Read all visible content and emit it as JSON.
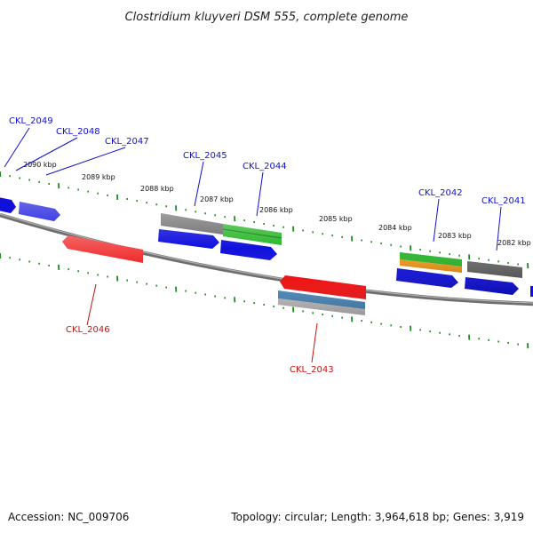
{
  "title": "Clostridium kluyveri DSM 555, complete genome",
  "footer": {
    "accession": "Accession: NC_009706",
    "summary": "Topology: circular; Length: 3,964,618 bp; Genes: 3,919"
  },
  "colors": {
    "forward_label": "#1010cc",
    "reverse_label": "#cc1010",
    "tick": "#1f8a1f",
    "backbone": "#808080",
    "cds": "#1010dd",
    "gene_rev": "#ee1111",
    "gene_gray": "#707070",
    "gene_green": "#2db82d",
    "gene_orange": "#f39a1a",
    "gene_steel": "#4a86b8",
    "gene_lightgray": "#bdbdbd"
  },
  "kbp_labels": [
    "2090 kbp",
    "2089 kbp",
    "2088 kbp",
    "2087 kbp",
    "2086 kbp",
    "2085 kbp",
    "2084 kbp",
    "2083 kbp",
    "2082 kbp"
  ],
  "forward_genes": [
    "CKL_2049",
    "CKL_2048",
    "CKL_2047",
    "CKL_2045",
    "CKL_2044",
    "CKL_2042",
    "CKL_2041"
  ],
  "reverse_genes": [
    "CKL_2046",
    "CKL_2043"
  ]
}
